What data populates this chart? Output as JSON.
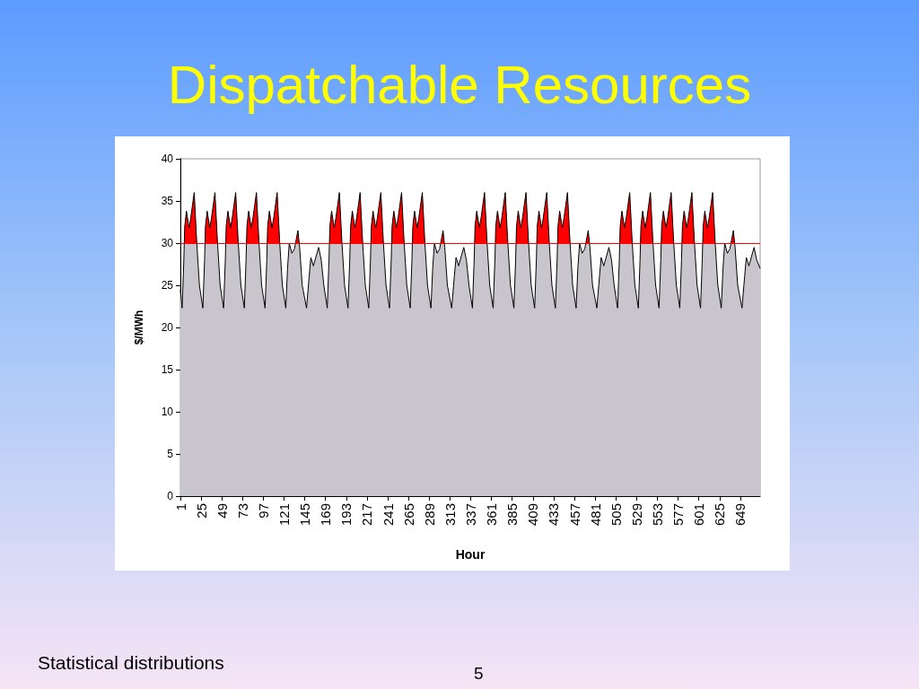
{
  "chart_data": {
    "type": "area",
    "title": "Dispatchable Resources",
    "xlabel": "Hour",
    "ylabel": "$/MWh",
    "annotations": [
      "Statistical distributions",
      "5"
    ],
    "xlim": [
      1,
      672
    ],
    "xticks": [
      1,
      25,
      49,
      73,
      97,
      121,
      145,
      169,
      193,
      217,
      241,
      265,
      289,
      313,
      337,
      361,
      385,
      409,
      433,
      457,
      481,
      505,
      529,
      553,
      577,
      601,
      625,
      649
    ],
    "ylim": [
      0,
      40
    ],
    "yticks": [
      0,
      5,
      10,
      15,
      20,
      25,
      30,
      35,
      40
    ],
    "ref_lines": [
      {
        "axis": "y",
        "value": 30,
        "color": "#ff0000"
      }
    ],
    "series": [
      {
        "color": "#c8c5cc",
        "x": [
          1,
          3,
          5,
          6,
          8,
          11,
          13,
          17,
          20,
          23,
          27,
          29,
          30,
          32,
          35,
          37,
          41,
          44,
          47,
          51,
          53,
          54,
          56,
          59,
          61,
          65,
          68,
          71,
          75,
          77,
          78,
          80,
          83,
          85,
          89,
          92,
          95,
          99,
          101,
          102,
          104,
          107,
          109,
          113,
          116,
          119,
          123,
          125,
          127,
          130,
          133,
          137,
          139,
          142,
          147,
          150,
          152,
          155,
          161,
          164,
          167,
          171,
          173,
          174,
          176,
          179,
          181,
          185,
          188,
          191,
          195,
          197,
          198,
          200,
          203,
          205,
          209,
          212,
          215,
          219,
          221,
          222,
          224,
          227,
          229,
          233,
          236,
          239,
          243,
          245,
          246,
          248,
          251,
          253,
          257,
          260,
          263,
          267,
          269,
          270,
          272,
          275,
          277,
          281,
          284,
          287,
          291,
          293,
          295,
          298,
          301,
          305,
          307,
          310,
          315,
          318,
          320,
          323,
          329,
          332,
          335,
          339,
          341,
          342,
          344,
          347,
          349,
          353,
          356,
          359,
          363,
          365,
          366,
          368,
          371,
          373,
          377,
          380,
          383,
          387,
          389,
          390,
          392,
          395,
          397,
          401,
          404,
          407,
          411,
          413,
          414,
          416,
          419,
          421,
          425,
          428,
          431,
          435,
          437,
          438,
          440,
          443,
          445,
          449,
          452,
          455,
          459,
          461,
          463,
          466,
          469,
          473,
          475,
          478,
          483,
          486,
          488,
          491,
          497,
          500,
          503,
          507,
          509,
          510,
          512,
          515,
          517,
          521,
          524,
          527,
          531,
          533,
          534,
          536,
          539,
          541,
          545,
          548,
          551,
          555,
          557,
          558,
          560,
          563,
          565,
          569,
          572,
          575,
          579,
          581,
          582,
          584,
          587,
          589,
          593,
          596,
          599,
          603,
          605,
          606,
          608,
          611,
          613,
          617,
          620,
          623,
          627,
          629,
          631,
          634,
          637,
          641,
          643,
          646,
          651,
          654,
          656,
          659,
          665,
          668,
          672
        ],
        "values": [
          24.5,
          22.3,
          28,
          32,
          33.8,
          31.8,
          33,
          36,
          30,
          25,
          22.3,
          28,
          32,
          33.8,
          31.8,
          33,
          36,
          30,
          25,
          22.3,
          28,
          32,
          33.8,
          31.8,
          33,
          36,
          30,
          25,
          22.3,
          28,
          32,
          33.8,
          31.8,
          33,
          36,
          30,
          25,
          22.3,
          28,
          32,
          33.8,
          31.8,
          33,
          36,
          30,
          25,
          22.3,
          27,
          30,
          28.8,
          29.3,
          31.5,
          29.5,
          25,
          22.3,
          26,
          28.3,
          27.3,
          29.5,
          28,
          25,
          22.3,
          28,
          32,
          33.8,
          31.8,
          33,
          36,
          30,
          25,
          22.3,
          28,
          32,
          33.8,
          31.8,
          33,
          36,
          30,
          25,
          22.3,
          28,
          32,
          33.8,
          31.8,
          33,
          36,
          30,
          25,
          22.3,
          28,
          32,
          33.8,
          31.8,
          33,
          36,
          30,
          25,
          22.3,
          28,
          32,
          33.8,
          31.8,
          33,
          36,
          30,
          25,
          22.3,
          27,
          30,
          28.8,
          29.3,
          31.5,
          29.5,
          25,
          22.3,
          26,
          28.3,
          27.3,
          29.5,
          28,
          25,
          22.3,
          28,
          32,
          33.8,
          31.8,
          33,
          36,
          30,
          25,
          22.3,
          28,
          32,
          33.8,
          31.8,
          33,
          36,
          30,
          25,
          22.3,
          28,
          32,
          33.8,
          31.8,
          33,
          36,
          30,
          25,
          22.3,
          28,
          32,
          33.8,
          31.8,
          33,
          36,
          30,
          25,
          22.3,
          28,
          32,
          33.8,
          31.8,
          33,
          36,
          30,
          25,
          22.3,
          27,
          30,
          28.8,
          29.3,
          31.5,
          29.5,
          25,
          22.3,
          26,
          28.3,
          27.3,
          29.5,
          28,
          25,
          22.3,
          28,
          32,
          33.8,
          31.8,
          33,
          36,
          30,
          25,
          22.3,
          28,
          32,
          33.8,
          31.8,
          33,
          36,
          30,
          25,
          22.3,
          28,
          32,
          33.8,
          31.8,
          33,
          36,
          30,
          25,
          22.3,
          28,
          32,
          33.8,
          31.8,
          33,
          36,
          30,
          25,
          22.3,
          28,
          32,
          33.8,
          31.8,
          33,
          36,
          30,
          25,
          22.3,
          27,
          30,
          28.8,
          29.3,
          31.5,
          29.5,
          25,
          22.3,
          26,
          28.3,
          27.3,
          29.5,
          28,
          27
        ]
      }
    ]
  }
}
